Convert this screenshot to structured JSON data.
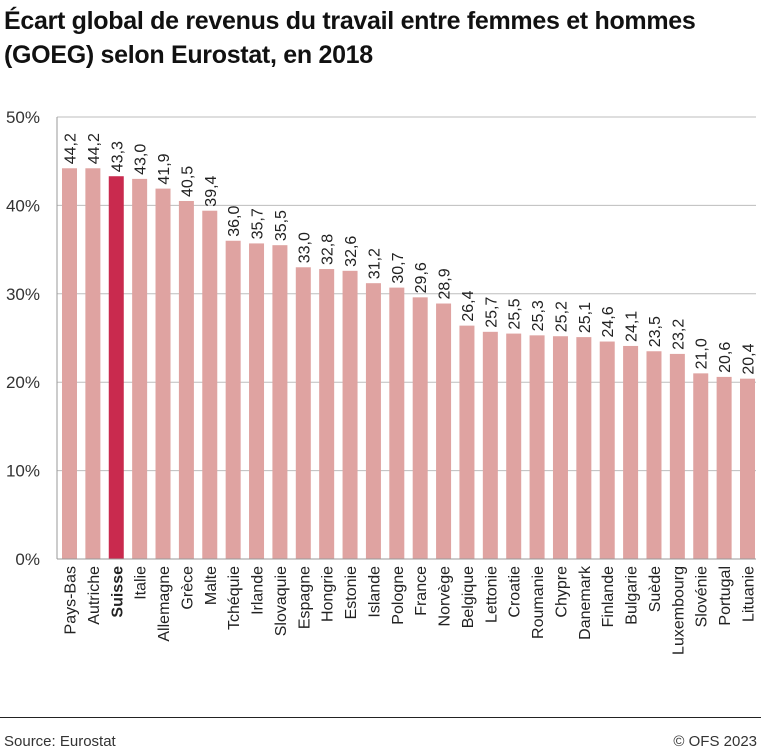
{
  "title": "Écart global de revenus du travail entre femmes et hommes (GOEG) selon Eurostat, en 2018",
  "footer": {
    "source": "Source: Eurostat",
    "copyright": "© OFS 2023"
  },
  "colors": {
    "bar": "#dfa3a1",
    "highlight": "#c92a4e",
    "grid": "#bdbdbd"
  },
  "chart_data": {
    "type": "bar",
    "title": "Écart global de revenus du travail entre femmes et hommes (GOEG) selon Eurostat, en 2018",
    "ylim": [
      0,
      50
    ],
    "yticks": [
      "0%",
      "10%",
      "20%",
      "30%",
      "40%",
      "50%"
    ],
    "grid": true,
    "highlight": "Suisse",
    "categories": [
      "Pays-Bas",
      "Autriche",
      "Suisse",
      "Italie",
      "Allemagne",
      "Grèce",
      "Malte",
      "Tchéquie",
      "Irlande",
      "Slovaquie",
      "Espagne",
      "Hongrie",
      "Estonie",
      "Islande",
      "Pologne",
      "France",
      "Norvège",
      "Belgique",
      "Lettonie",
      "Croatie",
      "Roumanie",
      "Chypre",
      "Danemark",
      "Finlande",
      "Bulgarie",
      "Suède",
      "Luxembourg",
      "Slovénie",
      "Portugal",
      "Lituanie"
    ],
    "values": [
      44.2,
      44.2,
      43.3,
      43.0,
      41.9,
      40.5,
      39.4,
      36.0,
      35.7,
      35.5,
      33.0,
      32.8,
      32.6,
      31.2,
      30.7,
      29.6,
      28.9,
      26.4,
      25.7,
      25.5,
      25.3,
      25.2,
      25.1,
      24.6,
      24.1,
      23.5,
      23.2,
      21.0,
      20.6,
      20.4
    ],
    "value_labels": [
      "44,2",
      "44,2",
      "43,3",
      "43,0",
      "41,9",
      "40,5",
      "39,4",
      "36,0",
      "35,7",
      "35,5",
      "33,0",
      "32,8",
      "32,6",
      "31,2",
      "30,7",
      "29,6",
      "28,9",
      "26,4",
      "25,7",
      "25,5",
      "25,3",
      "25,2",
      "25,1",
      "24,6",
      "24,1",
      "23,5",
      "23,2",
      "21,0",
      "20,6",
      "20,4"
    ]
  }
}
